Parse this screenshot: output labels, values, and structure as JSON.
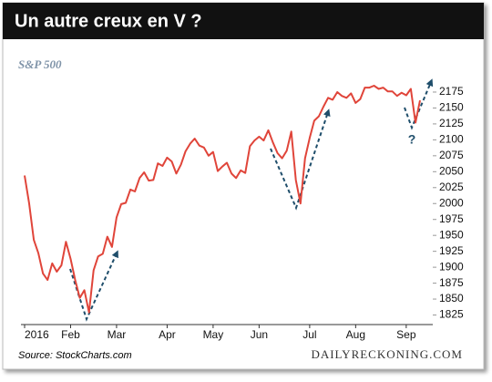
{
  "chart_data": {
    "type": "line",
    "title": "Un autre creux en V ?",
    "subtitle": "S&P 500",
    "source": "Source: StockCharts.com",
    "credit": "DAILYRECKONING.COM",
    "annotation": "?",
    "color": "#e0453a",
    "grid": false,
    "categories": [
      "2016",
      null,
      null,
      null,
      null,
      null,
      null,
      null,
      null,
      null,
      "Feb",
      null,
      null,
      null,
      null,
      null,
      null,
      null,
      null,
      null,
      "Mar",
      null,
      null,
      null,
      null,
      null,
      null,
      null,
      null,
      null,
      null,
      "Apr",
      null,
      null,
      null,
      null,
      null,
      null,
      null,
      null,
      null,
      "May",
      null,
      null,
      null,
      null,
      null,
      null,
      null,
      null,
      null,
      "Jun",
      null,
      null,
      null,
      null,
      null,
      null,
      null,
      null,
      null,
      null,
      "Jul",
      null,
      null,
      null,
      null,
      null,
      null,
      null,
      null,
      null,
      "Aug",
      null,
      null,
      null,
      null,
      null,
      null,
      null,
      null,
      null,
      null,
      "Sep",
      null,
      null,
      null
    ],
    "values": [
      2044,
      2000,
      1943,
      1922,
      1890,
      1880,
      1906,
      1893,
      1903,
      1940,
      1913,
      1880,
      1852,
      1864,
      1829,
      1895,
      1917,
      1921,
      1948,
      1932,
      1978,
      1999,
      2001,
      2022,
      2019,
      2040,
      2049,
      2036,
      2037,
      2063,
      2059,
      2072,
      2066,
      2047,
      2061,
      2082,
      2094,
      2102,
      2091,
      2088,
      2075,
      2081,
      2051,
      2058,
      2064,
      2047,
      2040,
      2052,
      2048,
      2090,
      2099,
      2105,
      2099,
      2115,
      2096,
      2079,
      2071,
      2083,
      2113,
      2037,
      2000,
      2071,
      2103,
      2130,
      2137,
      2152,
      2166,
      2163,
      2175,
      2169,
      2166,
      2173,
      2158,
      2164,
      2182,
      2182,
      2185,
      2180,
      2182,
      2176,
      2176,
      2169,
      2174,
      2170,
      2180,
      2127,
      2162
    ],
    "ylim": [
      1810,
      2195
    ],
    "yticks": [
      1825,
      1850,
      1875,
      1900,
      1925,
      1950,
      1975,
      2000,
      2025,
      2050,
      2075,
      2100,
      2125,
      2150,
      2175
    ]
  }
}
